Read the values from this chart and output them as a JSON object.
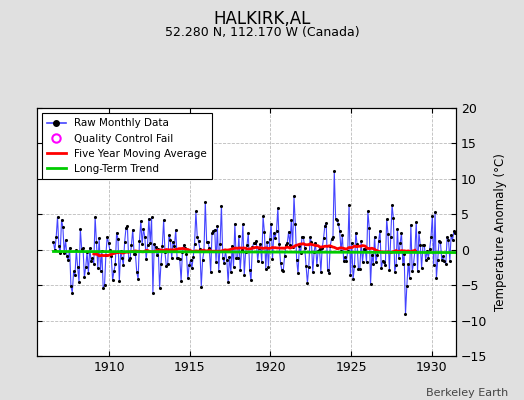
{
  "title": "HALKIRK,AL",
  "subtitle": "52.280 N, 112.170 W (Canada)",
  "ylabel": "Temperature Anomaly (°C)",
  "credit": "Berkeley Earth",
  "xlim": [
    1905.5,
    1931.5
  ],
  "ylim": [
    -15,
    20
  ],
  "yticks": [
    -15,
    -10,
    -5,
    0,
    5,
    10,
    15,
    20
  ],
  "xticks": [
    1910,
    1915,
    1920,
    1925,
    1930
  ],
  "bg_color": "#e0e0e0",
  "plot_bg_color": "#ffffff",
  "grid_color": "#bbbbbb",
  "raw_color": "#4444ff",
  "raw_marker_color": "#000000",
  "moving_avg_color": "#ff0000",
  "trend_color": "#00cc00",
  "qc_color": "#ff00ff",
  "seed": 42,
  "n_months": 300,
  "start_year": 1906,
  "start_month": 7
}
